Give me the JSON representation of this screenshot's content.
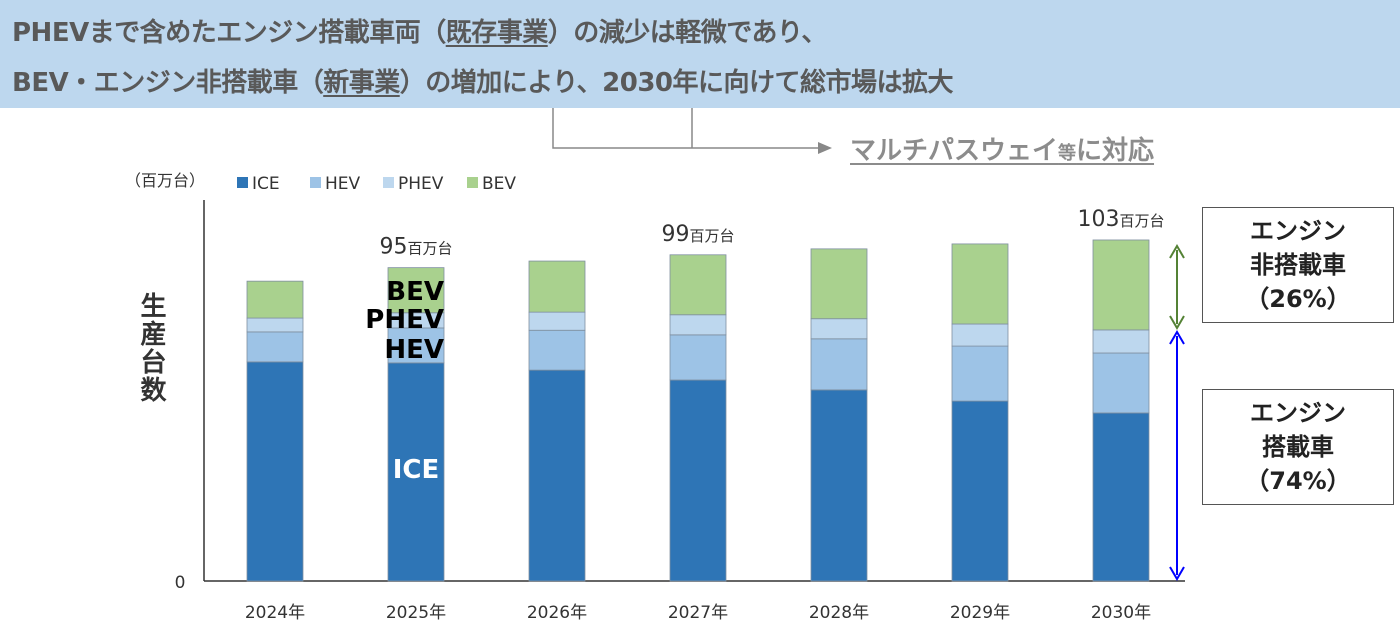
{
  "header": {
    "line1": [
      "PHEVまで含めたエンジン搭載車両（",
      "既存事業",
      "）の減少は軽微であり、"
    ],
    "line2": [
      "BEV・エンジン非搭載車（",
      "新事業",
      "）の増加により、2030年に向けて総市場は拡大"
    ],
    "callout_main": "マルチパスウェイ",
    "callout_small": "等",
    "callout_end": "に対応"
  },
  "boxes": {
    "non_engine": [
      "エンジン",
      "非搭載車",
      "（26%）"
    ],
    "engine": [
      "エンジン",
      "搭載車",
      "（74%）"
    ]
  },
  "colors": {
    "ICE": "#2e75b6",
    "HEV": "#9dc3e6",
    "PHEV": "#bdd7ee",
    "BEV": "#a9d18e",
    "green_arrow": "#548235",
    "blue_arrow": "#0000ff"
  },
  "chart_data": {
    "type": "bar",
    "stacked": true,
    "unit_label": "（百万台）",
    "ylabel": "生産台数",
    "ylim": [
      0,
      115
    ],
    "y_tick": "0",
    "legend_position": "top-left",
    "categories": [
      "2024年",
      "2025年",
      "2026年",
      "2027年",
      "2028年",
      "2029年",
      "2030年"
    ],
    "series": [
      {
        "name": "ICE",
        "values": [
          66.5,
          66.2,
          64.0,
          61.0,
          58.0,
          54.6,
          51.0
        ]
      },
      {
        "name": "HEV",
        "values": [
          9.1,
          10.6,
          12.1,
          13.7,
          15.5,
          16.7,
          18.2
        ]
      },
      {
        "name": "PHEV",
        "values": [
          4.2,
          4.6,
          5.5,
          6.1,
          6.1,
          6.7,
          7.0
        ]
      },
      {
        "name": "BEV",
        "values": [
          11.2,
          13.7,
          15.5,
          18.2,
          21.2,
          24.3,
          27.3
        ]
      }
    ],
    "total_labels": [
      {
        "index": 1,
        "value": "95",
        "unit": "百万台"
      },
      {
        "index": 3,
        "value": "99",
        "unit": "百万台"
      },
      {
        "index": 6,
        "value": "103",
        "unit": "百万台"
      }
    ],
    "segment_annotations": {
      "index": 1,
      "labels": [
        "BEV",
        "PHEV",
        "HEV",
        "ICE"
      ]
    }
  }
}
